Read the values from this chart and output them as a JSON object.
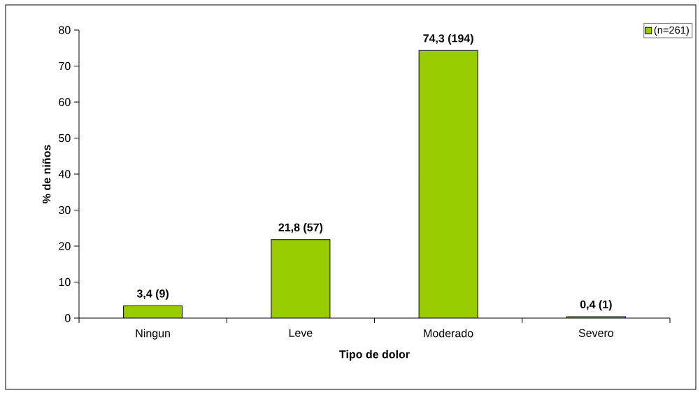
{
  "chart_data": {
    "type": "bar",
    "xlabel": "Tipo de dolor",
    "ylabel": "% de niños",
    "categories": [
      "Ningun",
      "Leve",
      "Moderado",
      "Severo"
    ],
    "series": [
      {
        "name": "(n=261)",
        "color": "#99cc00",
        "values": [
          3.4,
          21.8,
          74.3,
          0.4
        ],
        "value_labels": [
          "3,4 (9)",
          "21,8 (57)",
          "74,3 (194)",
          "0,4 (1)"
        ]
      }
    ],
    "ylim": [
      0,
      80
    ],
    "yticks": [
      0,
      10,
      20,
      30,
      40,
      50,
      60,
      70,
      80
    ],
    "legend": "top right"
  }
}
